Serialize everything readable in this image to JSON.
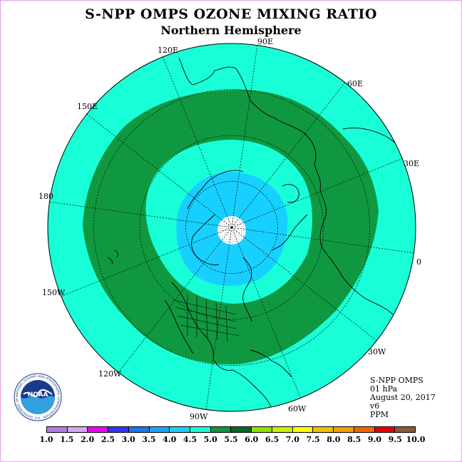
{
  "title": "S-NPP OMPS OZONE MIXING RATIO",
  "subtitle": "Northern Hemisphere",
  "longitude_labels": [
    "90E",
    "60E",
    "30E",
    "0",
    "30W",
    "60W",
    "90W",
    "120W",
    "150W",
    "180",
    "150E",
    "120E"
  ],
  "info": {
    "instrument": "S-NPP OMPS",
    "level": "01 hPa",
    "date": "August 20, 2017",
    "version": "v6",
    "units": "PPM"
  },
  "colorbar": {
    "colors": [
      "#b57ce8",
      "#d8a6f0",
      "#f000f0",
      "#3333ff",
      "#1a78f0",
      "#18a8f8",
      "#18d0ff",
      "#18ffd8",
      "#109840",
      "#086828",
      "#90e000",
      "#c8f000",
      "#ffff00",
      "#f0c000",
      "#f0a000",
      "#f06800",
      "#e80000",
      "#8a5a38"
    ],
    "tick_labels": [
      "1.0",
      "1.5",
      "2.0",
      "2.5",
      "3.0",
      "3.5",
      "4.0",
      "4.5",
      "5.0",
      "5.5",
      "6.0",
      "6.5",
      "7.0",
      "7.5",
      "8.0",
      "8.5",
      "9.0",
      "9.5",
      "10.0"
    ]
  },
  "logo": {
    "text": "NOAA",
    "ring_text": "NATIONAL OCEANIC AND ATMOSPHERIC ADMINISTRATION · U.S. DEPARTMENT OF COMMERCE"
  },
  "map_colors": {
    "outer": "#18ffd8",
    "band": "#109840",
    "inner": "#18d0ff",
    "pole_hole": "#ffffff"
  }
}
